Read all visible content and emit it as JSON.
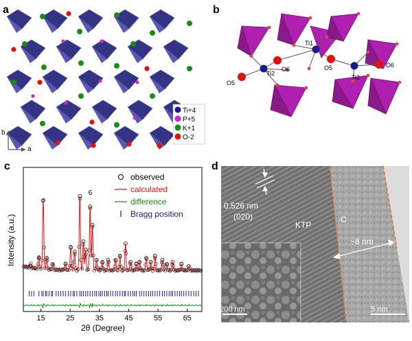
{
  "panels": {
    "a": {
      "label": "a",
      "axes": {
        "b": "b",
        "a": "a"
      },
      "legend": [
        {
          "name": "Ti+4",
          "color": "#1a1a8c"
        },
        {
          "name": "P+5",
          "color": "#d028c8"
        },
        {
          "name": "K+1",
          "color": "#1a8c1a"
        },
        {
          "name": "O-2",
          "color": "#e01010"
        }
      ]
    },
    "b": {
      "label": "b",
      "atoms": [
        "Ti1",
        "Ti2",
        "Ti2",
        "O5",
        "O5",
        "O6",
        "O6"
      ]
    },
    "c": {
      "label": "c",
      "peak_label": "6",
      "legend": {
        "observed": "observed",
        "calculated": "calculated",
        "difference": "difference",
        "bragg": "Bragg position"
      }
    },
    "d": {
      "label": "d",
      "lattice": "0.526 nm",
      "plane": "(020)",
      "ktp": "KTP",
      "c": "C",
      "thickness": "~8 nm",
      "scale_inset": "200 nm",
      "scale_main": "5 nm"
    }
  },
  "colors": {
    "observed": "#000000",
    "calculated": "#e01010",
    "difference": "#1a8c1a",
    "bragg": "#1a1a8c",
    "annotation": "#e07020"
  },
  "chart_data": {
    "type": "line",
    "title": "",
    "xlabel": "2θ (Degree)",
    "ylabel": "Intensity (a.u.)",
    "xlim": [
      9,
      70
    ],
    "ylim": [
      0,
      100
    ],
    "xticks": [
      15,
      25,
      35,
      45,
      55,
      65
    ],
    "xtick_labels": [
      "15",
      "25",
      "35",
      "45",
      "55",
      "65"
    ],
    "baseline": 12,
    "peaks": [
      {
        "x": 11.5,
        "y": 16
      },
      {
        "x": 14.3,
        "y": 24
      },
      {
        "x": 15.8,
        "y": 80
      },
      {
        "x": 17.0,
        "y": 24
      },
      {
        "x": 19.0,
        "y": 18
      },
      {
        "x": 23.4,
        "y": 18
      },
      {
        "x": 25.2,
        "y": 34
      },
      {
        "x": 26.5,
        "y": 30
      },
      {
        "x": 28.3,
        "y": 84
      },
      {
        "x": 29.5,
        "y": 40
      },
      {
        "x": 30.3,
        "y": 32
      },
      {
        "x": 31.8,
        "y": 74
      },
      {
        "x": 32.6,
        "y": 56
      },
      {
        "x": 34.0,
        "y": 22
      },
      {
        "x": 36.0,
        "y": 20
      },
      {
        "x": 38.0,
        "y": 22
      },
      {
        "x": 40.5,
        "y": 22
      },
      {
        "x": 42.0,
        "y": 26
      },
      {
        "x": 43.9,
        "y": 38
      },
      {
        "x": 45.6,
        "y": 20
      },
      {
        "x": 47.6,
        "y": 18
      },
      {
        "x": 48.7,
        "y": 20
      },
      {
        "x": 51.0,
        "y": 24
      },
      {
        "x": 52.5,
        "y": 20
      },
      {
        "x": 54.0,
        "y": 26
      },
      {
        "x": 56.5,
        "y": 22
      },
      {
        "x": 58.0,
        "y": 18
      },
      {
        "x": 60.0,
        "y": 20
      },
      {
        "x": 63.0,
        "y": 18
      },
      {
        "x": 65.5,
        "y": 16
      }
    ],
    "bragg_positions": [
      11.0,
      11.8,
      12.6,
      14.3,
      15.3,
      15.8,
      16.6,
      17.0,
      17.8,
      18.6,
      19.0,
      20.2,
      21.0,
      21.8,
      22.6,
      23.4,
      24.4,
      25.2,
      26.0,
      26.5,
      27.3,
      28.3,
      28.9,
      29.5,
      30.3,
      31.0,
      31.8,
      32.6,
      33.4,
      34.0,
      34.8,
      35.4,
      36.0,
      36.8,
      37.5,
      38.0,
      38.8,
      39.6,
      40.5,
      41.2,
      42.0,
      42.8,
      43.5,
      43.9,
      44.8,
      45.6,
      46.4,
      47.0,
      47.6,
      48.7,
      49.4,
      50.2,
      51.0,
      51.8,
      52.5,
      53.2,
      54.0,
      54.8,
      55.6,
      56.5,
      57.2,
      58.0,
      58.8,
      59.5,
      60.0,
      60.8,
      61.6,
      62.4,
      63.0,
      63.8,
      64.6,
      65.5,
      66.3,
      67.2,
      68.0,
      68.8
    ]
  }
}
